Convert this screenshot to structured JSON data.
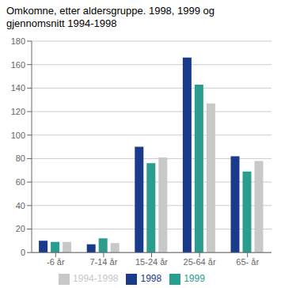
{
  "chart_data": {
    "type": "bar",
    "title": "Omkomne, etter aldersgruppe. 1998, 1999 og gjennomsnitt 1994-1998",
    "categories": [
      "-6 år",
      "7-14 år",
      "15-24 år",
      "25-64 år",
      "65- år"
    ],
    "series": [
      {
        "name": "1998",
        "color": "#1a3a8c",
        "values": [
          10,
          7,
          90,
          166,
          82
        ]
      },
      {
        "name": "1999",
        "color": "#2a9d8f",
        "values": [
          9,
          12,
          76,
          143,
          69
        ]
      },
      {
        "name": "1994-1998",
        "color": "#c8c8c8",
        "values": [
          9,
          8,
          81,
          127,
          78
        ]
      }
    ],
    "ylim": [
      0,
      180
    ],
    "yticks": [
      0,
      20,
      40,
      60,
      80,
      100,
      120,
      140,
      160,
      180
    ],
    "grid": true,
    "legend": "bottom"
  }
}
